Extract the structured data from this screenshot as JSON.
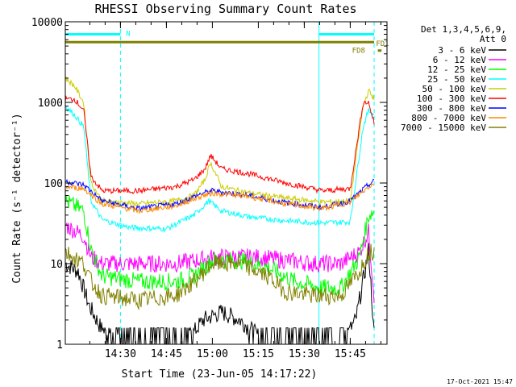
{
  "chart_data": {
    "type": "line",
    "title": "RHESSI Observing Summary Count Rates",
    "xlabel": "Start Time (23-Jun-05 14:17:22)",
    "ylabel": "Count Rate (s⁻¹ detector⁻¹)",
    "yscale": "log",
    "ylim": [
      1,
      10000
    ],
    "xlim_minutes": [
      14.2,
      15.95
    ],
    "x_ticks": [
      {
        "value": 14.5,
        "label": "14:30"
      },
      {
        "value": 14.75,
        "label": "14:45"
      },
      {
        "value": 15.0,
        "label": "15:00"
      },
      {
        "value": 15.25,
        "label": "15:15"
      },
      {
        "value": 15.5,
        "label": "15:30"
      },
      {
        "value": 15.75,
        "label": "15:45"
      }
    ],
    "y_ticks": [
      {
        "value": 1,
        "label": "1"
      },
      {
        "value": 10,
        "label": "10"
      },
      {
        "value": 100,
        "label": "100"
      },
      {
        "value": 1000,
        "label": "1000"
      },
      {
        "value": 10000,
        "label": "10000"
      }
    ],
    "legend_header": [
      "Det 1,3,4,5,6,9,",
      "Att 0"
    ],
    "legend_position": "right",
    "series": [
      {
        "name": "3 - 6 keV",
        "color": "#000000",
        "x": [
          14.2,
          14.27,
          14.33,
          14.4,
          14.5,
          14.65,
          14.85,
          14.95,
          15.05,
          15.15,
          15.3,
          15.45,
          15.6,
          15.7,
          15.78,
          15.83,
          15.85,
          15.87,
          15.88
        ],
        "y": [
          10,
          8,
          3,
          1.5,
          1,
          1,
          1,
          2,
          2.5,
          2,
          1,
          1,
          1,
          1,
          2,
          8,
          15,
          3,
          1
        ]
      },
      {
        "name": "6 - 12 keV",
        "color": "#ff00ff",
        "x": [
          14.2,
          14.3,
          14.34,
          14.4,
          14.6,
          14.8,
          14.92,
          15.0,
          15.1,
          15.25,
          15.4,
          15.55,
          15.7,
          15.8,
          15.85,
          15.88
        ],
        "y": [
          30,
          22,
          12,
          10,
          10,
          10,
          11,
          12,
          12,
          12,
          11,
          10,
          10,
          14,
          25,
          4
        ]
      },
      {
        "name": "12 - 25 keV",
        "color": "#00ff00",
        "x": [
          14.2,
          14.3,
          14.34,
          14.4,
          14.6,
          14.8,
          14.9,
          15.0,
          15.15,
          15.3,
          15.45,
          15.6,
          15.7,
          15.8,
          15.85,
          15.88
        ],
        "y": [
          60,
          45,
          15,
          7,
          6,
          6,
          7,
          11,
          11,
          9,
          6,
          5,
          5,
          12,
          40,
          45
        ]
      },
      {
        "name": "25 - 50 keV",
        "color": "#00ffff",
        "x": [
          14.2,
          14.25,
          14.3,
          14.34,
          14.4,
          14.55,
          14.75,
          14.9,
          14.98,
          15.05,
          15.2,
          15.4,
          15.6,
          15.75,
          15.82,
          15.85,
          15.88
        ],
        "y": [
          900,
          700,
          500,
          60,
          35,
          28,
          27,
          40,
          60,
          45,
          38,
          34,
          32,
          33,
          500,
          800,
          700
        ]
      },
      {
        "name": "50 - 100 keV",
        "color": "#cccc00",
        "x": [
          14.2,
          14.25,
          14.3,
          14.34,
          14.4,
          14.6,
          14.8,
          14.9,
          14.96,
          14.99,
          15.05,
          15.2,
          15.4,
          15.6,
          15.75,
          15.82,
          15.85,
          15.88
        ],
        "y": [
          2000,
          1600,
          1000,
          100,
          60,
          55,
          60,
          70,
          110,
          180,
          90,
          75,
          65,
          58,
          60,
          900,
          1400,
          1100
        ]
      },
      {
        "name": "100 - 300 keV",
        "color": "#ff0000",
        "x": [
          14.2,
          14.25,
          14.3,
          14.34,
          14.4,
          14.6,
          14.8,
          14.9,
          14.96,
          14.99,
          15.05,
          15.2,
          15.4,
          15.6,
          15.75,
          15.82,
          15.85,
          15.88
        ],
        "y": [
          1100,
          1100,
          800,
          120,
          80,
          80,
          90,
          110,
          150,
          220,
          150,
          130,
          100,
          80,
          85,
          1000,
          1000,
          550
        ]
      },
      {
        "name": "300 - 800 keV",
        "color": "#0000ff",
        "x": [
          14.2,
          14.3,
          14.4,
          14.6,
          14.8,
          14.95,
          15.0,
          15.2,
          15.4,
          15.6,
          15.75,
          15.85,
          15.88
        ],
        "y": [
          105,
          95,
          60,
          48,
          55,
          75,
          80,
          70,
          57,
          50,
          60,
          95,
          105
        ]
      },
      {
        "name": "800 - 7000 keV",
        "color": "#ff8800",
        "x": [
          14.2,
          14.3,
          14.4,
          14.6,
          14.8,
          14.95,
          15.0,
          15.2,
          15.4,
          15.6,
          15.75,
          15.85,
          15.88
        ],
        "y": [
          90,
          85,
          55,
          45,
          52,
          70,
          75,
          68,
          55,
          48,
          58,
          90,
          100
        ]
      },
      {
        "name": "7000 - 15000 keV",
        "color": "#808000",
        "x": [
          14.2,
          14.3,
          14.34,
          14.4,
          14.6,
          14.8,
          14.9,
          15.0,
          15.15,
          15.3,
          15.4,
          15.55,
          15.7,
          15.8,
          15.85,
          15.88
        ],
        "y": [
          14,
          10,
          6,
          4,
          3.5,
          4,
          6,
          10,
          10,
          7,
          4.5,
          4,
          4,
          8,
          14,
          14
        ]
      },
      {
        "name": "",
        "color": "#00ffff",
        "x": [
          14.2,
          14.5
        ],
        "y": [
          7000,
          7000
        ]
      },
      {
        "name": "",
        "color": "#00ffff",
        "x": [
          15.58,
          15.88
        ],
        "y": [
          7000,
          7000
        ]
      },
      {
        "name": "",
        "color": "#808000",
        "x": [
          14.2,
          15.88
        ],
        "y": [
          5600,
          5600
        ]
      },
      {
        "name": "",
        "color": "#808000",
        "x": [
          15.9,
          15.92
        ],
        "y": [
          4400,
          4400
        ]
      }
    ],
    "vertical_markers": [
      {
        "x": 14.2,
        "color": "#00ffff",
        "style": "solid"
      },
      {
        "x": 14.5,
        "color": "#00ffff",
        "style": "dashed"
      },
      {
        "x": 15.58,
        "color": "#00ffff",
        "style": "solid"
      },
      {
        "x": 15.88,
        "color": "#00ffff",
        "style": "dashed"
      }
    ],
    "annotations": [
      {
        "text": "N",
        "x": 14.53,
        "y": 7300,
        "color": "#00ffff"
      },
      {
        "text": "FD1",
        "x": 15.89,
        "y": 5500,
        "color": "#808000"
      },
      {
        "text": "FD8",
        "x": 15.76,
        "y": 4500,
        "color": "#808000"
      }
    ],
    "footer": "17-Oct-2021 15:47"
  }
}
